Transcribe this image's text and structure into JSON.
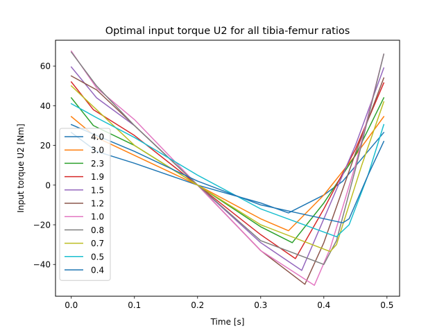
{
  "chart_data": {
    "type": "line",
    "title": "Optimal input torque U2 for all tibia-femur ratios",
    "xlabel": "Time [s]",
    "ylabel": "Input torque U2 [Nm]",
    "xlim": [
      -0.025,
      0.52
    ],
    "ylim": [
      -56,
      73
    ],
    "xticks": [
      0.0,
      0.1,
      0.2,
      0.3,
      0.4,
      0.5
    ],
    "xtick_labels": [
      "0.0",
      "0.1",
      "0.2",
      "0.3",
      "0.4",
      "0.5"
    ],
    "yticks": [
      -40,
      -20,
      0,
      20,
      40,
      60
    ],
    "ytick_labels": [
      "−40",
      "−20",
      "0",
      "20",
      "40",
      "60"
    ],
    "grid": false,
    "legend_position": "left",
    "series": [
      {
        "name": "4.0",
        "color": "#1f77b4",
        "x": [
          0,
          0.04,
          0.1,
          0.2,
          0.3,
          0.344,
          0.4,
          0.43,
          0.495
        ],
        "y": [
          26.5,
          17,
          11,
          0,
          -9,
          -14,
          -5,
          2,
          26.5
        ]
      },
      {
        "name": "3.0",
        "color": "#ff7f0e",
        "x": [
          0,
          0.04,
          0.1,
          0.2,
          0.3,
          0.344,
          0.4,
          0.45,
          0.495
        ],
        "y": [
          34.5,
          24,
          15,
          0,
          -17,
          -23,
          -5,
          15,
          34.5
        ]
      },
      {
        "name": "2.3",
        "color": "#2ca02c",
        "x": [
          0,
          0.035,
          0.1,
          0.2,
          0.3,
          0.35,
          0.4,
          0.45,
          0.495
        ],
        "y": [
          44,
          30,
          20,
          0,
          -21,
          -29,
          -9,
          15,
          44
        ]
      },
      {
        "name": "1.9",
        "color": "#d62728",
        "x": [
          0,
          0.035,
          0.1,
          0.2,
          0.3,
          0.355,
          0.4,
          0.45,
          0.495
        ],
        "y": [
          52,
          38,
          25,
          0,
          -25,
          -37,
          -12,
          18,
          51.5
        ]
      },
      {
        "name": "1.5",
        "color": "#9467bd",
        "x": [
          0,
          0.04,
          0.1,
          0.2,
          0.3,
          0.365,
          0.4,
          0.45,
          0.495
        ],
        "y": [
          59.5,
          44,
          30,
          0,
          -29,
          -43,
          -17,
          20,
          59
        ]
      },
      {
        "name": "1.2",
        "color": "#8c564b",
        "x": [
          0,
          0.04,
          0.1,
          0.2,
          0.3,
          0.37,
          0.4,
          0.45,
          0.495
        ],
        "y": [
          55,
          48,
          30,
          0,
          -33,
          -50,
          -29,
          16,
          54
        ]
      },
      {
        "name": "1.0",
        "color": "#e377c2",
        "x": [
          0,
          0.04,
          0.1,
          0.2,
          0.3,
          0.385,
          0.41,
          0.45,
          0.495
        ],
        "y": [
          67.5,
          49,
          33,
          0,
          -33,
          -50.5,
          -32,
          10,
          66
        ]
      },
      {
        "name": "0.8",
        "color": "#7f7f7f",
        "x": [
          0,
          0.04,
          0.1,
          0.2,
          0.3,
          0.4,
          0.42,
          0.45,
          0.495
        ],
        "y": [
          67,
          50,
          30,
          0,
          -28,
          -40,
          -28,
          8,
          66
        ]
      },
      {
        "name": "0.7",
        "color": "#bcbd22",
        "x": [
          0,
          0.04,
          0.1,
          0.2,
          0.3,
          0.41,
          0.42,
          0.46,
          0.495
        ],
        "y": [
          50,
          38,
          20,
          0,
          -20,
          -33.5,
          -30,
          10,
          42
        ]
      },
      {
        "name": "0.5",
        "color": "#17becf",
        "x": [
          0,
          0.04,
          0.1,
          0.2,
          0.3,
          0.42,
          0.44,
          0.47,
          0.495
        ],
        "y": [
          41,
          34,
          24,
          5,
          -12,
          -26,
          -20,
          5,
          30.5
        ]
      },
      {
        "name": "0.4",
        "color": "#1f77b4",
        "x": [
          0,
          0.04,
          0.1,
          0.2,
          0.3,
          0.43,
          0.44,
          0.47,
          0.495
        ],
        "y": [
          30.5,
          25,
          17,
          2,
          -10,
          -19,
          -17,
          5,
          22
        ]
      }
    ]
  }
}
